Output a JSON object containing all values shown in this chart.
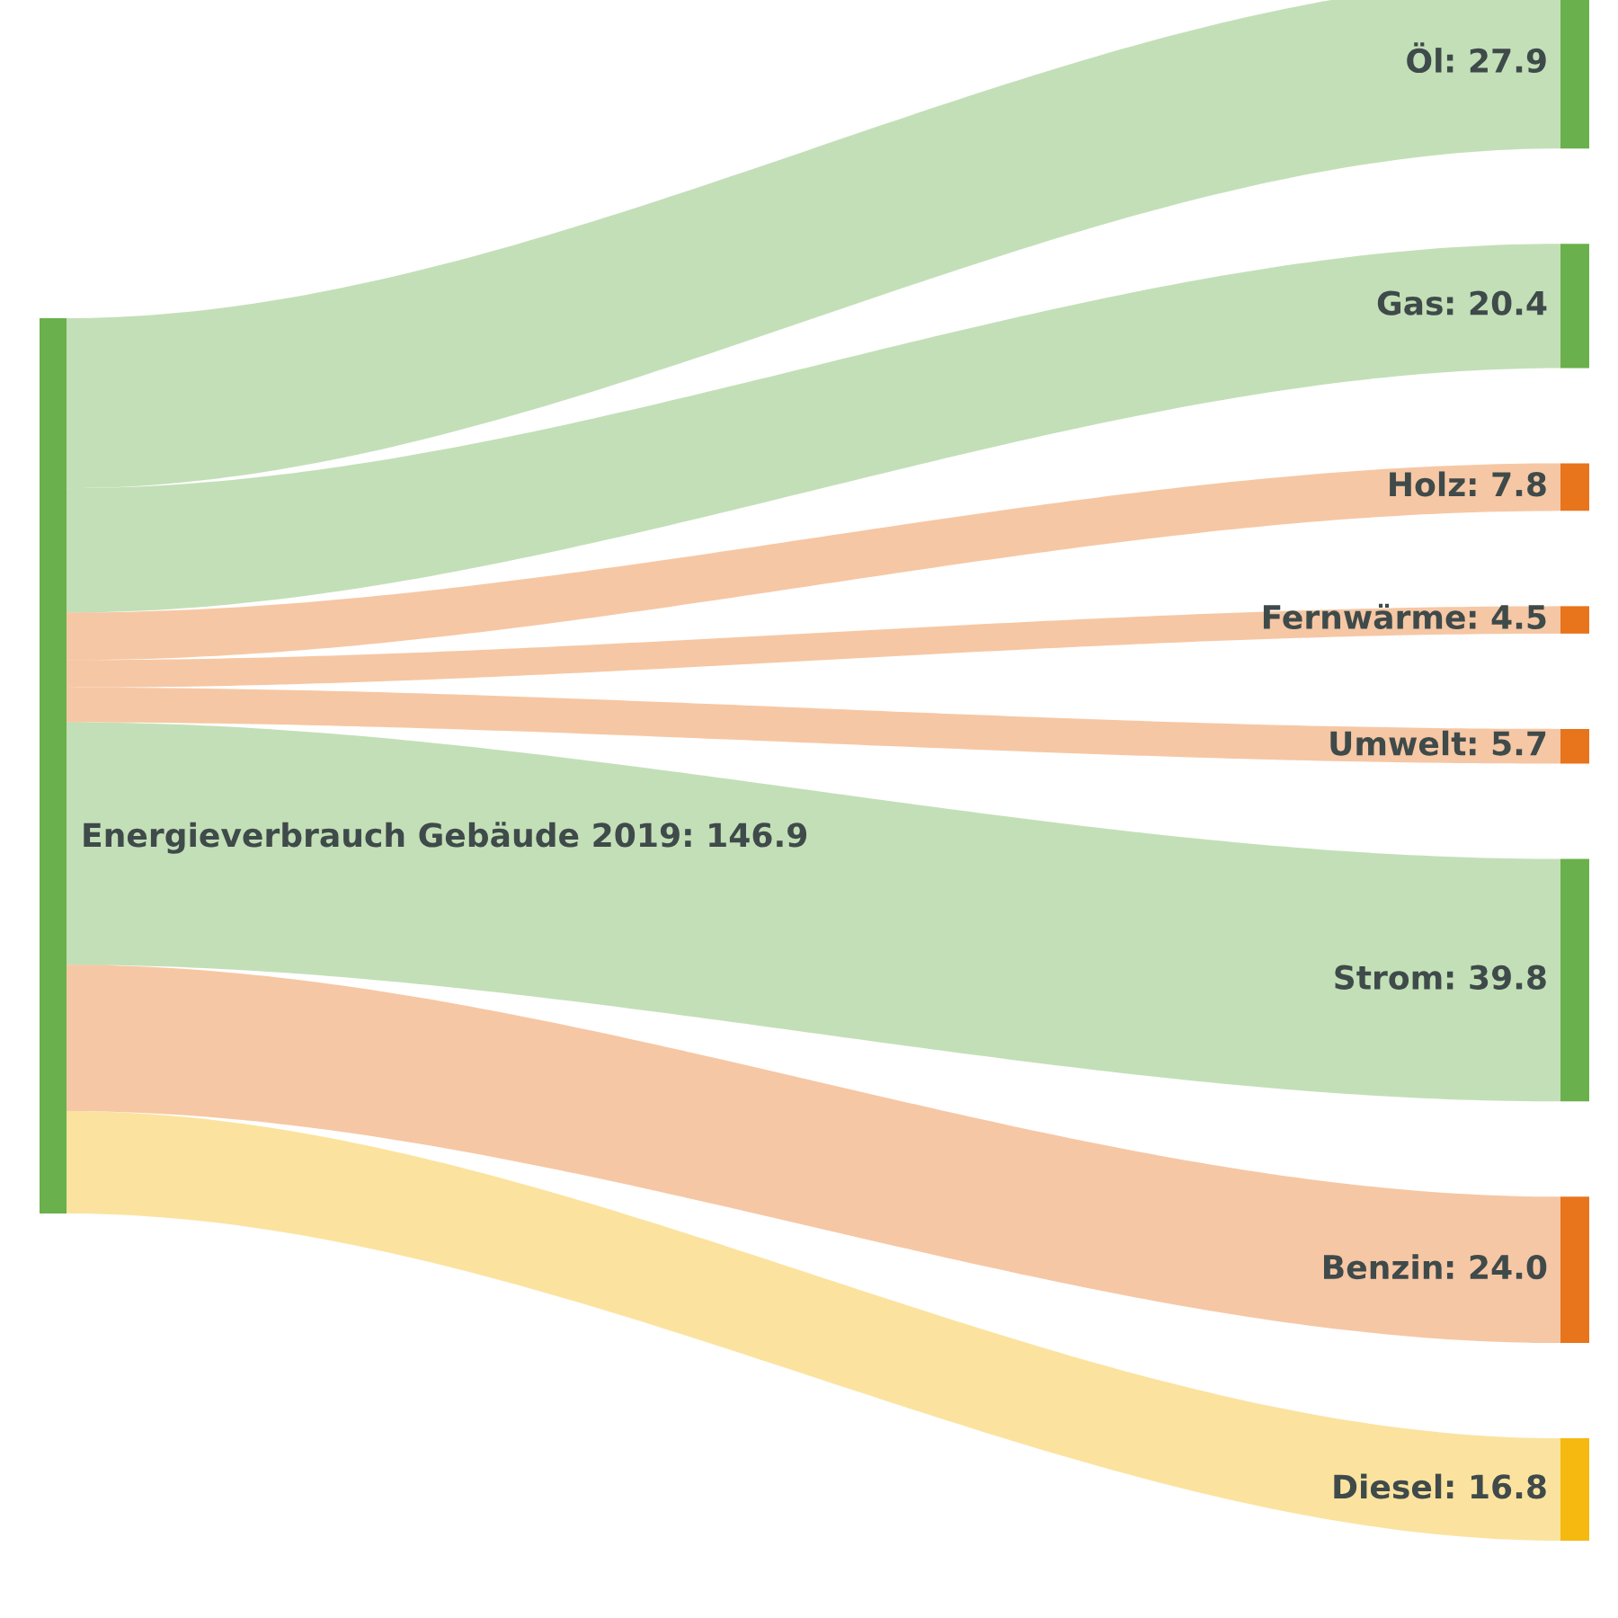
{
  "chart_data": {
    "type": "other",
    "annotations": [
      "Energieverbrauch Gebäude 2019: 146.9"
    ],
    "categories": [
      "Öl",
      "Gas",
      "Holz",
      "Fernwärme",
      "Umwelt",
      "Strom",
      "Benzin",
      "Diesel"
    ],
    "values": [
      27.9,
      20.4,
      7.8,
      4.5,
      5.7,
      39.8,
      24.0,
      16.8
    ],
    "value_labels": [
      ": 27.9",
      ": 20.4",
      ": 7.8",
      ": 4.5",
      ": 5.7",
      ": 39.8",
      ": 24.0",
      ": 16.8"
    ],
    "colors": [
      "#6ab04c",
      "#6ab04c",
      "#e8741c",
      "#e8741c",
      "#e8741c",
      "#6ab04c",
      "#e8741c",
      "#f5b90f"
    ]
  }
}
